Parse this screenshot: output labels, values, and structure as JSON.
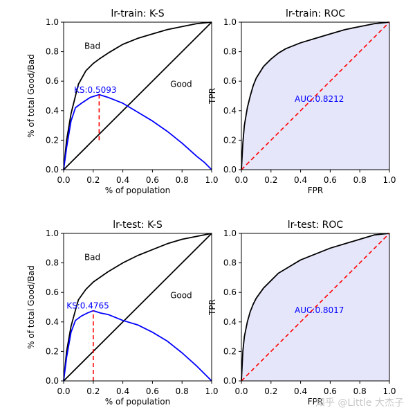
{
  "watermark": "知乎 @Little 大杰子",
  "chart_data": [
    {
      "type": "line",
      "title": "lr-train: K-S",
      "xlabel": "% of population",
      "ylabel": "% of total Good/Bad",
      "xlim": [
        0,
        1
      ],
      "ylim": [
        0,
        1
      ],
      "xticks": [
        "0.0",
        "0.2",
        "0.4",
        "0.6",
        "0.8",
        "1.0"
      ],
      "yticks": [
        "0.0",
        "0.2",
        "0.4",
        "0.6",
        "0.8",
        "1.0"
      ],
      "annotations": [
        {
          "text": "Bad",
          "x": 0.14,
          "y": 0.82,
          "color": "#000000"
        },
        {
          "text": "Good",
          "x": 0.72,
          "y": 0.56,
          "color": "#000000"
        },
        {
          "text": "KS:0.5093",
          "x": 0.07,
          "y": 0.52,
          "color": "#0000ff"
        }
      ],
      "series": [
        {
          "name": "Bad",
          "color": "#000000",
          "x": [
            0,
            0.02,
            0.05,
            0.08,
            0.1,
            0.15,
            0.2,
            0.24,
            0.3,
            0.35,
            0.4,
            0.5,
            0.6,
            0.7,
            0.8,
            0.9,
            1.0
          ],
          "y": [
            0,
            0.2,
            0.38,
            0.5,
            0.58,
            0.67,
            0.72,
            0.75,
            0.79,
            0.82,
            0.85,
            0.89,
            0.92,
            0.95,
            0.97,
            0.99,
            1.0
          ]
        },
        {
          "name": "Good",
          "color": "#000000",
          "x": [
            0,
            1.0
          ],
          "y": [
            0,
            1.0
          ]
        },
        {
          "name": "KS",
          "color": "#0000ff",
          "x": [
            0,
            0.02,
            0.05,
            0.08,
            0.12,
            0.18,
            0.24,
            0.3,
            0.4,
            0.5,
            0.6,
            0.7,
            0.8,
            0.9,
            0.95,
            1.0
          ],
          "y": [
            0,
            0.15,
            0.33,
            0.42,
            0.45,
            0.49,
            0.509,
            0.49,
            0.45,
            0.39,
            0.33,
            0.26,
            0.18,
            0.09,
            0.05,
            0
          ]
        }
      ],
      "markers": [
        {
          "type": "vline",
          "x": 0.24,
          "y0": 0.2,
          "y1": 0.509,
          "color": "#ff0000",
          "style": "dashed"
        }
      ]
    },
    {
      "type": "area",
      "title": "lr-train: ROC",
      "xlabel": "FPR",
      "ylabel": "TPR",
      "xlim": [
        0,
        1
      ],
      "ylim": [
        0,
        1
      ],
      "xticks": [
        "0.0",
        "0.2",
        "0.4",
        "0.6",
        "0.8",
        "1.0"
      ],
      "yticks": [
        "0.0",
        "0.2",
        "0.4",
        "0.6",
        "0.8",
        "1.0"
      ],
      "fill_color": "#e6e6fa",
      "annotations": [
        {
          "text": "AUC:0.8212",
          "x": 0.36,
          "y": 0.46,
          "color": "#0000ff"
        }
      ],
      "series": [
        {
          "name": "ROC",
          "color": "#000000",
          "x": [
            0,
            0.01,
            0.02,
            0.04,
            0.06,
            0.08,
            0.1,
            0.15,
            0.2,
            0.25,
            0.3,
            0.4,
            0.5,
            0.6,
            0.7,
            0.8,
            0.9,
            1.0
          ],
          "y": [
            0,
            0.18,
            0.3,
            0.42,
            0.5,
            0.57,
            0.62,
            0.7,
            0.75,
            0.79,
            0.82,
            0.86,
            0.89,
            0.92,
            0.95,
            0.97,
            0.99,
            1.0
          ]
        },
        {
          "name": "diagonal",
          "color": "#ff0000",
          "style": "dashed",
          "x": [
            0,
            1.0
          ],
          "y": [
            0,
            1.0
          ]
        }
      ]
    },
    {
      "type": "line",
      "title": "lr-test: K-S",
      "xlabel": "% of population",
      "ylabel": "% of total Good/Bad",
      "xlim": [
        0,
        1
      ],
      "ylim": [
        0,
        1
      ],
      "xticks": [
        "0.0",
        "0.2",
        "0.4",
        "0.6",
        "0.8",
        "1.0"
      ],
      "yticks": [
        "0.0",
        "0.2",
        "0.4",
        "0.6",
        "0.8",
        "1.0"
      ],
      "annotations": [
        {
          "text": "Bad",
          "x": 0.14,
          "y": 0.82,
          "color": "#000000"
        },
        {
          "text": "Good",
          "x": 0.72,
          "y": 0.56,
          "color": "#000000"
        },
        {
          "text": "KS:0.4765",
          "x": 0.02,
          "y": 0.49,
          "color": "#0000ff"
        }
      ],
      "series": [
        {
          "name": "Bad",
          "color": "#000000",
          "x": [
            0,
            0.02,
            0.05,
            0.08,
            0.1,
            0.15,
            0.2,
            0.3,
            0.4,
            0.5,
            0.6,
            0.7,
            0.8,
            0.9,
            1.0
          ],
          "y": [
            0,
            0.2,
            0.37,
            0.48,
            0.55,
            0.62,
            0.67,
            0.74,
            0.8,
            0.85,
            0.89,
            0.93,
            0.96,
            0.98,
            1.0
          ]
        },
        {
          "name": "Good",
          "color": "#000000",
          "x": [
            0,
            1.0
          ],
          "y": [
            0,
            1.0
          ]
        },
        {
          "name": "KS",
          "color": "#0000ff",
          "x": [
            0,
            0.02,
            0.05,
            0.08,
            0.12,
            0.16,
            0.2,
            0.25,
            0.3,
            0.4,
            0.5,
            0.6,
            0.7,
            0.8,
            0.9,
            0.95,
            1.0
          ],
          "y": [
            0,
            0.16,
            0.33,
            0.41,
            0.44,
            0.46,
            0.476,
            0.46,
            0.45,
            0.41,
            0.38,
            0.33,
            0.27,
            0.19,
            0.1,
            0.05,
            0
          ]
        }
      ],
      "markers": [
        {
          "type": "vline",
          "x": 0.2,
          "y0": 0,
          "y1": 0.476,
          "color": "#ff0000",
          "style": "dashed"
        }
      ]
    },
    {
      "type": "area",
      "title": "lr-test: ROC",
      "xlabel": "FPR",
      "ylabel": "TPR",
      "xlim": [
        0,
        1
      ],
      "ylim": [
        0,
        1
      ],
      "xticks": [
        "0.0",
        "0.2",
        "0.4",
        "0.6",
        "0.8",
        "1.0"
      ],
      "yticks": [
        "0.0",
        "0.2",
        "0.4",
        "0.6",
        "0.8",
        "1.0"
      ],
      "fill_color": "#e6e6fa",
      "annotations": [
        {
          "text": "AUC:0.8017",
          "x": 0.36,
          "y": 0.46,
          "color": "#0000ff"
        }
      ],
      "series": [
        {
          "name": "ROC",
          "color": "#000000",
          "x": [
            0,
            0.01,
            0.02,
            0.04,
            0.06,
            0.08,
            0.1,
            0.15,
            0.2,
            0.25,
            0.3,
            0.4,
            0.5,
            0.6,
            0.7,
            0.8,
            0.9,
            1.0
          ],
          "y": [
            0,
            0.2,
            0.3,
            0.4,
            0.47,
            0.52,
            0.56,
            0.63,
            0.68,
            0.73,
            0.76,
            0.82,
            0.86,
            0.9,
            0.93,
            0.96,
            0.99,
            1.0
          ]
        },
        {
          "name": "diagonal",
          "color": "#ff0000",
          "style": "dashed",
          "x": [
            0,
            1.0
          ],
          "y": [
            0,
            1.0
          ]
        }
      ]
    }
  ]
}
